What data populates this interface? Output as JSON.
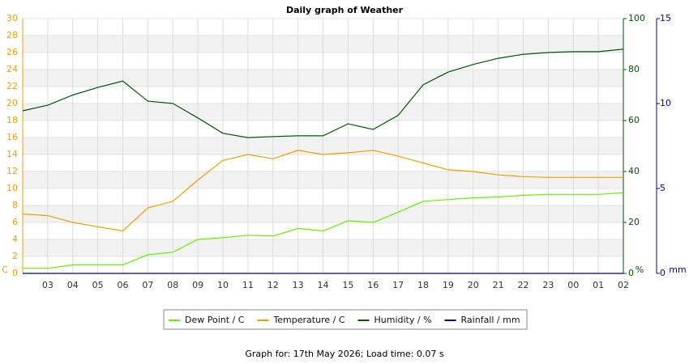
{
  "chart_data": {
    "type": "line",
    "title": "Daily graph of Weather",
    "x": [
      null,
      "03",
      "04",
      "05",
      "06",
      "07",
      "08",
      "09",
      "10",
      "11",
      "12",
      "13",
      "14",
      "15",
      "16",
      "17",
      "18",
      "19",
      "20",
      "21",
      "22",
      "23",
      "00",
      "01",
      "02"
    ],
    "ylim": [
      0,
      30
    ],
    "yticks": [
      0,
      2,
      4,
      6,
      8,
      10,
      12,
      14,
      16,
      18,
      20,
      22,
      24,
      26,
      28,
      30
    ],
    "ylabel": "C",
    "y2lim": [
      0,
      100
    ],
    "y2ticks": [
      0,
      20,
      40,
      60,
      80,
      100
    ],
    "y2label": "%",
    "y3lim": [
      0,
      15
    ],
    "y3ticks": [
      0,
      5,
      10,
      15
    ],
    "y3label": "mm",
    "grid": true,
    "legend": "bottom",
    "series": [
      {
        "name": "Dew Point / C",
        "color": "#66ee00",
        "axis": "y",
        "values": [
          0.6,
          0.6,
          1.0,
          1.0,
          1.0,
          2.2,
          2.5,
          4.0,
          4.2,
          4.5,
          4.4,
          5.3,
          5.0,
          6.2,
          6.0,
          7.2,
          8.5,
          8.7,
          8.9,
          9.0,
          9.2,
          9.3,
          9.3,
          9.3,
          9.5
        ]
      },
      {
        "name": "Temperature / C",
        "color": "#eea000",
        "axis": "y",
        "values": [
          7.0,
          6.8,
          6.0,
          5.5,
          5.0,
          7.7,
          8.5,
          11.0,
          13.3,
          14.0,
          13.5,
          14.5,
          14.0,
          14.2,
          14.5,
          13.8,
          13.0,
          12.2,
          12.0,
          11.6,
          11.4,
          11.3,
          11.3,
          11.3,
          11.3
        ]
      },
      {
        "name": "Humidity / %",
        "color": "#005500",
        "axis": "y2",
        "values": [
          63.8,
          66,
          70,
          73,
          75.5,
          67.6,
          66.7,
          61,
          55,
          53.3,
          53.7,
          54,
          54,
          58.7,
          56.5,
          62,
          74,
          79,
          82,
          84.4,
          86,
          86.7,
          87,
          87,
          88
        ]
      },
      {
        "name": "Rainfall / mm",
        "color": "#0000aa",
        "axis": "y3",
        "values": [
          0,
          0,
          0,
          0,
          0,
          0,
          0,
          0,
          0,
          0,
          0,
          0,
          0,
          0,
          0,
          0,
          0,
          0,
          0,
          0,
          0,
          0,
          0,
          0,
          0
        ]
      }
    ],
    "footer": "Graph for: 17th May 2026; Load time: 0.07 s"
  }
}
